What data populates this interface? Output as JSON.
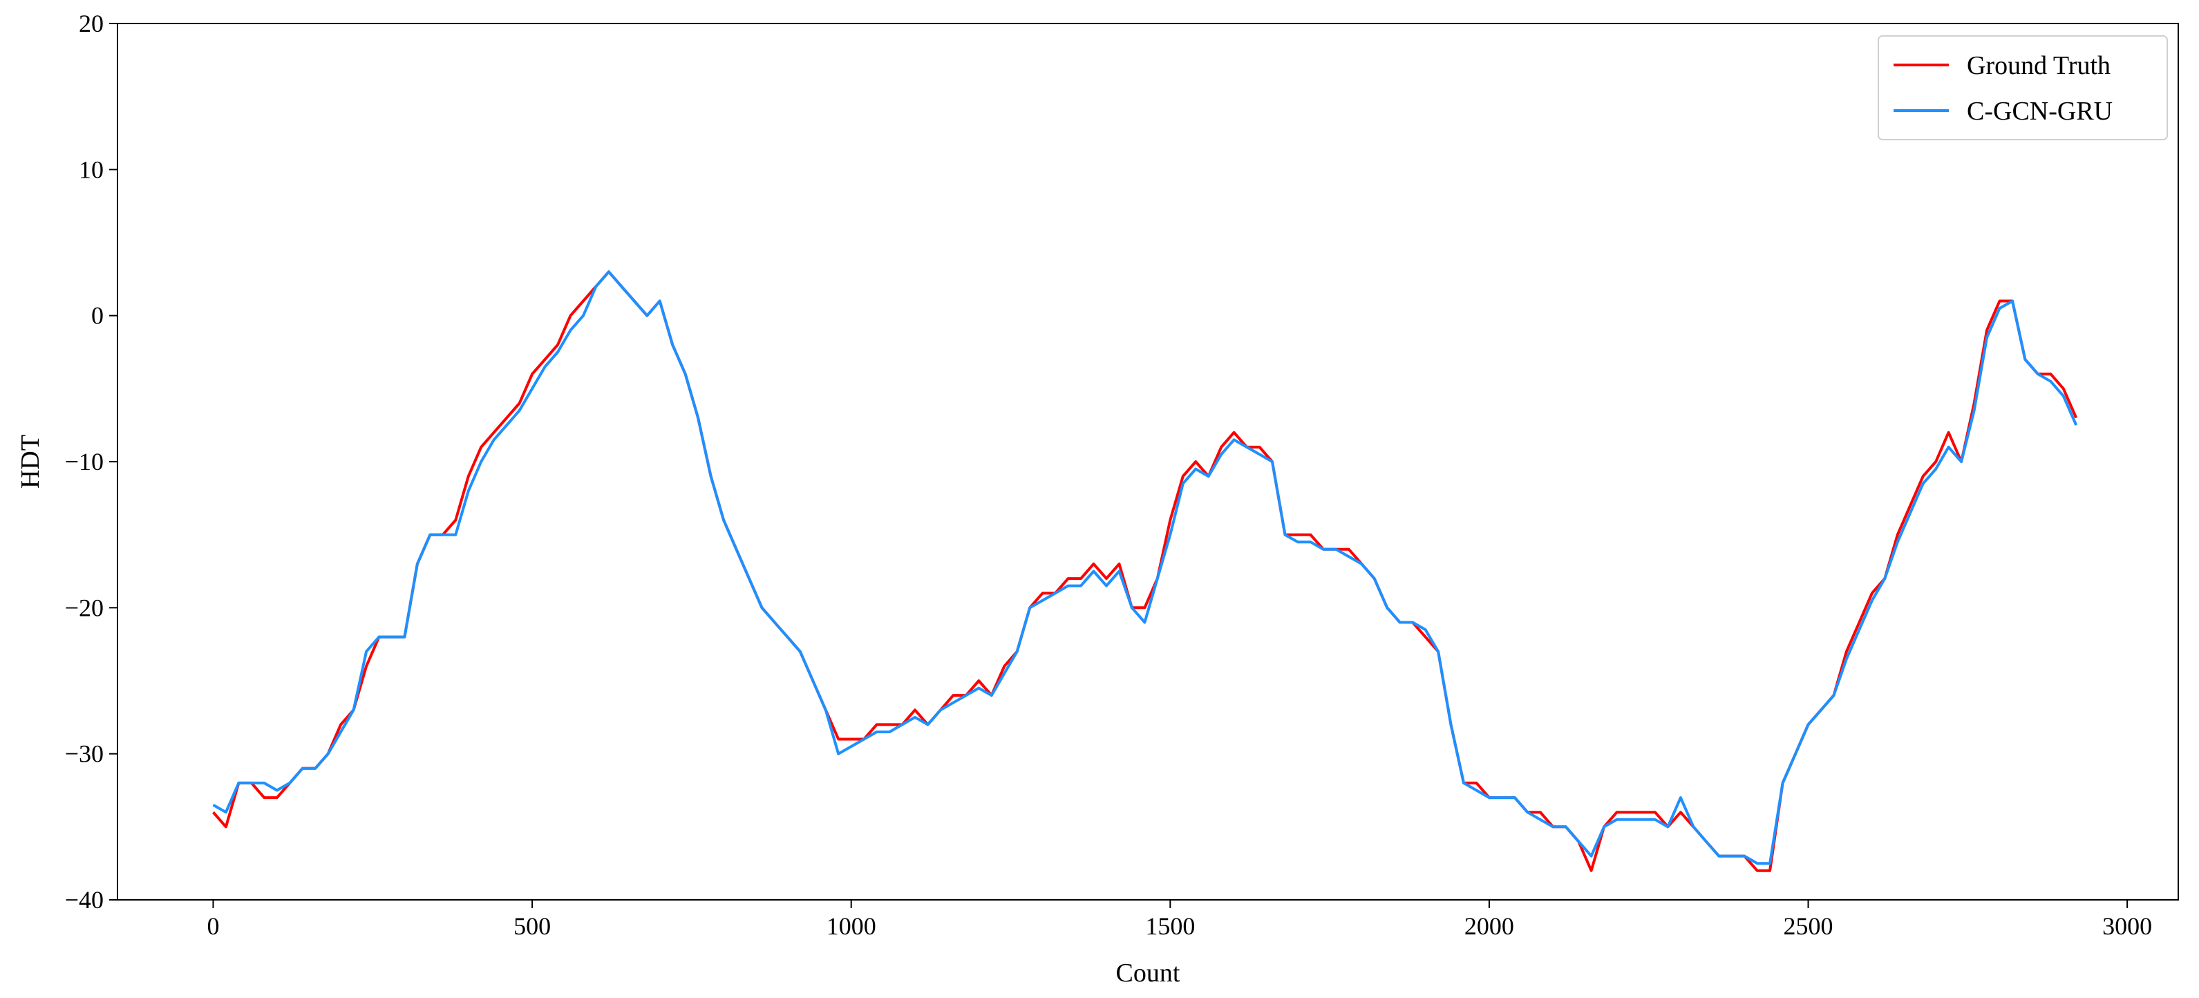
{
  "chart_data": {
    "type": "line",
    "title": "",
    "xlabel": "Count",
    "ylabel": "HDT",
    "xlim": [
      -150,
      3080
    ],
    "ylim": [
      -40,
      20
    ],
    "xticks": [
      0,
      500,
      1000,
      1500,
      2000,
      2500,
      3000
    ],
    "xtick_labels": [
      "0",
      "500",
      "1000",
      "1500",
      "2000",
      "2500",
      "3000"
    ],
    "yticks": [
      -40,
      -30,
      -20,
      -10,
      0,
      10,
      20
    ],
    "ytick_labels": [
      "−40",
      "−30",
      "−20",
      "−10",
      "0",
      "10",
      "20"
    ],
    "grid": false,
    "legend_position": "top-right",
    "series": [
      {
        "name": "Ground Truth",
        "color": "#ff0000",
        "points": [
          [
            0,
            -34
          ],
          [
            20,
            -35
          ],
          [
            40,
            -32
          ],
          [
            60,
            -32
          ],
          [
            80,
            -33
          ],
          [
            100,
            -33
          ],
          [
            120,
            -32
          ],
          [
            140,
            -31
          ],
          [
            160,
            -31
          ],
          [
            180,
            -30
          ],
          [
            200,
            -28
          ],
          [
            220,
            -27
          ],
          [
            240,
            -24
          ],
          [
            260,
            -22
          ],
          [
            280,
            -22
          ],
          [
            300,
            -22
          ],
          [
            320,
            -17
          ],
          [
            340,
            -15
          ],
          [
            360,
            -15
          ],
          [
            380,
            -14
          ],
          [
            400,
            -11
          ],
          [
            420,
            -9
          ],
          [
            440,
            -8
          ],
          [
            460,
            -7
          ],
          [
            480,
            -6
          ],
          [
            500,
            -4
          ],
          [
            520,
            -3
          ],
          [
            540,
            -2
          ],
          [
            560,
            0
          ],
          [
            580,
            1
          ],
          [
            600,
            2
          ],
          [
            620,
            3
          ],
          [
            640,
            2
          ],
          [
            660,
            1
          ],
          [
            680,
            0
          ],
          [
            700,
            1
          ],
          [
            720,
            -2
          ],
          [
            740,
            -4
          ],
          [
            760,
            -7
          ],
          [
            780,
            -11
          ],
          [
            800,
            -14
          ],
          [
            820,
            -16
          ],
          [
            840,
            -18
          ],
          [
            860,
            -20
          ],
          [
            880,
            -21
          ],
          [
            900,
            -22
          ],
          [
            920,
            -23
          ],
          [
            940,
            -25
          ],
          [
            960,
            -27
          ],
          [
            980,
            -29
          ],
          [
            1000,
            -29
          ],
          [
            1020,
            -29
          ],
          [
            1040,
            -28
          ],
          [
            1060,
            -28
          ],
          [
            1080,
            -28
          ],
          [
            1100,
            -27
          ],
          [
            1120,
            -28
          ],
          [
            1140,
            -27
          ],
          [
            1160,
            -26
          ],
          [
            1180,
            -26
          ],
          [
            1200,
            -25
          ],
          [
            1220,
            -26
          ],
          [
            1240,
            -24
          ],
          [
            1260,
            -23
          ],
          [
            1280,
            -20
          ],
          [
            1300,
            -19
          ],
          [
            1320,
            -19
          ],
          [
            1340,
            -18
          ],
          [
            1360,
            -18
          ],
          [
            1380,
            -17
          ],
          [
            1400,
            -18
          ],
          [
            1420,
            -17
          ],
          [
            1440,
            -20
          ],
          [
            1460,
            -20
          ],
          [
            1480,
            -18
          ],
          [
            1500,
            -14
          ],
          [
            1520,
            -11
          ],
          [
            1540,
            -10
          ],
          [
            1560,
            -11
          ],
          [
            1580,
            -9
          ],
          [
            1600,
            -8
          ],
          [
            1620,
            -9
          ],
          [
            1640,
            -9
          ],
          [
            1660,
            -10
          ],
          [
            1680,
            -15
          ],
          [
            1700,
            -15
          ],
          [
            1720,
            -15
          ],
          [
            1740,
            -16
          ],
          [
            1760,
            -16
          ],
          [
            1780,
            -16
          ],
          [
            1800,
            -17
          ],
          [
            1820,
            -18
          ],
          [
            1840,
            -20
          ],
          [
            1860,
            -21
          ],
          [
            1880,
            -21
          ],
          [
            1900,
            -22
          ],
          [
            1920,
            -23
          ],
          [
            1940,
            -28
          ],
          [
            1960,
            -32
          ],
          [
            1980,
            -32
          ],
          [
            2000,
            -33
          ],
          [
            2020,
            -33
          ],
          [
            2040,
            -33
          ],
          [
            2060,
            -34
          ],
          [
            2080,
            -34
          ],
          [
            2100,
            -35
          ],
          [
            2120,
            -35
          ],
          [
            2140,
            -36
          ],
          [
            2160,
            -38
          ],
          [
            2180,
            -35
          ],
          [
            2200,
            -34
          ],
          [
            2220,
            -34
          ],
          [
            2240,
            -34
          ],
          [
            2260,
            -34
          ],
          [
            2280,
            -35
          ],
          [
            2300,
            -34
          ],
          [
            2320,
            -35
          ],
          [
            2340,
            -36
          ],
          [
            2360,
            -37
          ],
          [
            2380,
            -37
          ],
          [
            2400,
            -37
          ],
          [
            2420,
            -38
          ],
          [
            2440,
            -38
          ],
          [
            2460,
            -32
          ],
          [
            2480,
            -30
          ],
          [
            2500,
            -28
          ],
          [
            2520,
            -27
          ],
          [
            2540,
            -26
          ],
          [
            2560,
            -23
          ],
          [
            2580,
            -21
          ],
          [
            2600,
            -19
          ],
          [
            2620,
            -18
          ],
          [
            2640,
            -15
          ],
          [
            2660,
            -13
          ],
          [
            2680,
            -11
          ],
          [
            2700,
            -10
          ],
          [
            2720,
            -8
          ],
          [
            2740,
            -10
          ],
          [
            2760,
            -6
          ],
          [
            2780,
            -1
          ],
          [
            2800,
            1
          ],
          [
            2820,
            1
          ],
          [
            2840,
            -3
          ],
          [
            2860,
            -4
          ],
          [
            2880,
            -4
          ],
          [
            2900,
            -5
          ],
          [
            2920,
            -7
          ]
        ]
      },
      {
        "name": "C-GCN-GRU",
        "color": "#1e90ff",
        "points": [
          [
            0,
            -33.5
          ],
          [
            20,
            -34
          ],
          [
            40,
            -32
          ],
          [
            60,
            -32
          ],
          [
            80,
            -32
          ],
          [
            100,
            -32.5
          ],
          [
            120,
            -32
          ],
          [
            140,
            -31
          ],
          [
            160,
            -31
          ],
          [
            180,
            -30
          ],
          [
            200,
            -28.5
          ],
          [
            220,
            -27
          ],
          [
            240,
            -23
          ],
          [
            260,
            -22
          ],
          [
            280,
            -22
          ],
          [
            300,
            -22
          ],
          [
            320,
            -17
          ],
          [
            340,
            -15
          ],
          [
            360,
            -15
          ],
          [
            380,
            -15
          ],
          [
            400,
            -12
          ],
          [
            420,
            -10
          ],
          [
            440,
            -8.5
          ],
          [
            460,
            -7.5
          ],
          [
            480,
            -6.5
          ],
          [
            500,
            -5
          ],
          [
            520,
            -3.5
          ],
          [
            540,
            -2.5
          ],
          [
            560,
            -1
          ],
          [
            580,
            0
          ],
          [
            600,
            2
          ],
          [
            620,
            3
          ],
          [
            640,
            2
          ],
          [
            660,
            1
          ],
          [
            680,
            0
          ],
          [
            700,
            1
          ],
          [
            720,
            -2
          ],
          [
            740,
            -4
          ],
          [
            760,
            -7
          ],
          [
            780,
            -11
          ],
          [
            800,
            -14
          ],
          [
            820,
            -16
          ],
          [
            840,
            -18
          ],
          [
            860,
            -20
          ],
          [
            880,
            -21
          ],
          [
            900,
            -22
          ],
          [
            920,
            -23
          ],
          [
            940,
            -25
          ],
          [
            960,
            -27
          ],
          [
            980,
            -30
          ],
          [
            1000,
            -29.5
          ],
          [
            1020,
            -29
          ],
          [
            1040,
            -28.5
          ],
          [
            1060,
            -28.5
          ],
          [
            1080,
            -28
          ],
          [
            1100,
            -27.5
          ],
          [
            1120,
            -28
          ],
          [
            1140,
            -27
          ],
          [
            1160,
            -26.5
          ],
          [
            1180,
            -26
          ],
          [
            1200,
            -25.5
          ],
          [
            1220,
            -26
          ],
          [
            1240,
            -24.5
          ],
          [
            1260,
            -23
          ],
          [
            1280,
            -20
          ],
          [
            1300,
            -19.5
          ],
          [
            1320,
            -19
          ],
          [
            1340,
            -18.5
          ],
          [
            1360,
            -18.5
          ],
          [
            1380,
            -17.5
          ],
          [
            1400,
            -18.5
          ],
          [
            1420,
            -17.5
          ],
          [
            1440,
            -20
          ],
          [
            1460,
            -21
          ],
          [
            1480,
            -18
          ],
          [
            1500,
            -15
          ],
          [
            1520,
            -11.5
          ],
          [
            1540,
            -10.5
          ],
          [
            1560,
            -11
          ],
          [
            1580,
            -9.5
          ],
          [
            1600,
            -8.5
          ],
          [
            1620,
            -9
          ],
          [
            1640,
            -9.5
          ],
          [
            1660,
            -10
          ],
          [
            1680,
            -15
          ],
          [
            1700,
            -15.5
          ],
          [
            1720,
            -15.5
          ],
          [
            1740,
            -16
          ],
          [
            1760,
            -16
          ],
          [
            1780,
            -16.5
          ],
          [
            1800,
            -17
          ],
          [
            1820,
            -18
          ],
          [
            1840,
            -20
          ],
          [
            1860,
            -21
          ],
          [
            1880,
            -21
          ],
          [
            1900,
            -21.5
          ],
          [
            1920,
            -23
          ],
          [
            1940,
            -28
          ],
          [
            1960,
            -32
          ],
          [
            1980,
            -32.5
          ],
          [
            2000,
            -33
          ],
          [
            2020,
            -33
          ],
          [
            2040,
            -33
          ],
          [
            2060,
            -34
          ],
          [
            2080,
            -34.5
          ],
          [
            2100,
            -35
          ],
          [
            2120,
            -35
          ],
          [
            2140,
            -36
          ],
          [
            2160,
            -37
          ],
          [
            2180,
            -35
          ],
          [
            2200,
            -34.5
          ],
          [
            2220,
            -34.5
          ],
          [
            2240,
            -34.5
          ],
          [
            2260,
            -34.5
          ],
          [
            2280,
            -35
          ],
          [
            2300,
            -33
          ],
          [
            2320,
            -35
          ],
          [
            2340,
            -36
          ],
          [
            2360,
            -37
          ],
          [
            2380,
            -37
          ],
          [
            2400,
            -37
          ],
          [
            2420,
            -37.5
          ],
          [
            2440,
            -37.5
          ],
          [
            2460,
            -32
          ],
          [
            2480,
            -30
          ],
          [
            2500,
            -28
          ],
          [
            2520,
            -27
          ],
          [
            2540,
            -26
          ],
          [
            2560,
            -23.5
          ],
          [
            2580,
            -21.5
          ],
          [
            2600,
            -19.5
          ],
          [
            2620,
            -18
          ],
          [
            2640,
            -15.5
          ],
          [
            2660,
            -13.5
          ],
          [
            2680,
            -11.5
          ],
          [
            2700,
            -10.5
          ],
          [
            2720,
            -9
          ],
          [
            2740,
            -10
          ],
          [
            2760,
            -6.5
          ],
          [
            2780,
            -1.5
          ],
          [
            2800,
            0.5
          ],
          [
            2820,
            1
          ],
          [
            2840,
            -3
          ],
          [
            2860,
            -4
          ],
          [
            2880,
            -4.5
          ],
          [
            2900,
            -5.5
          ],
          [
            2920,
            -7.5
          ]
        ]
      }
    ]
  }
}
